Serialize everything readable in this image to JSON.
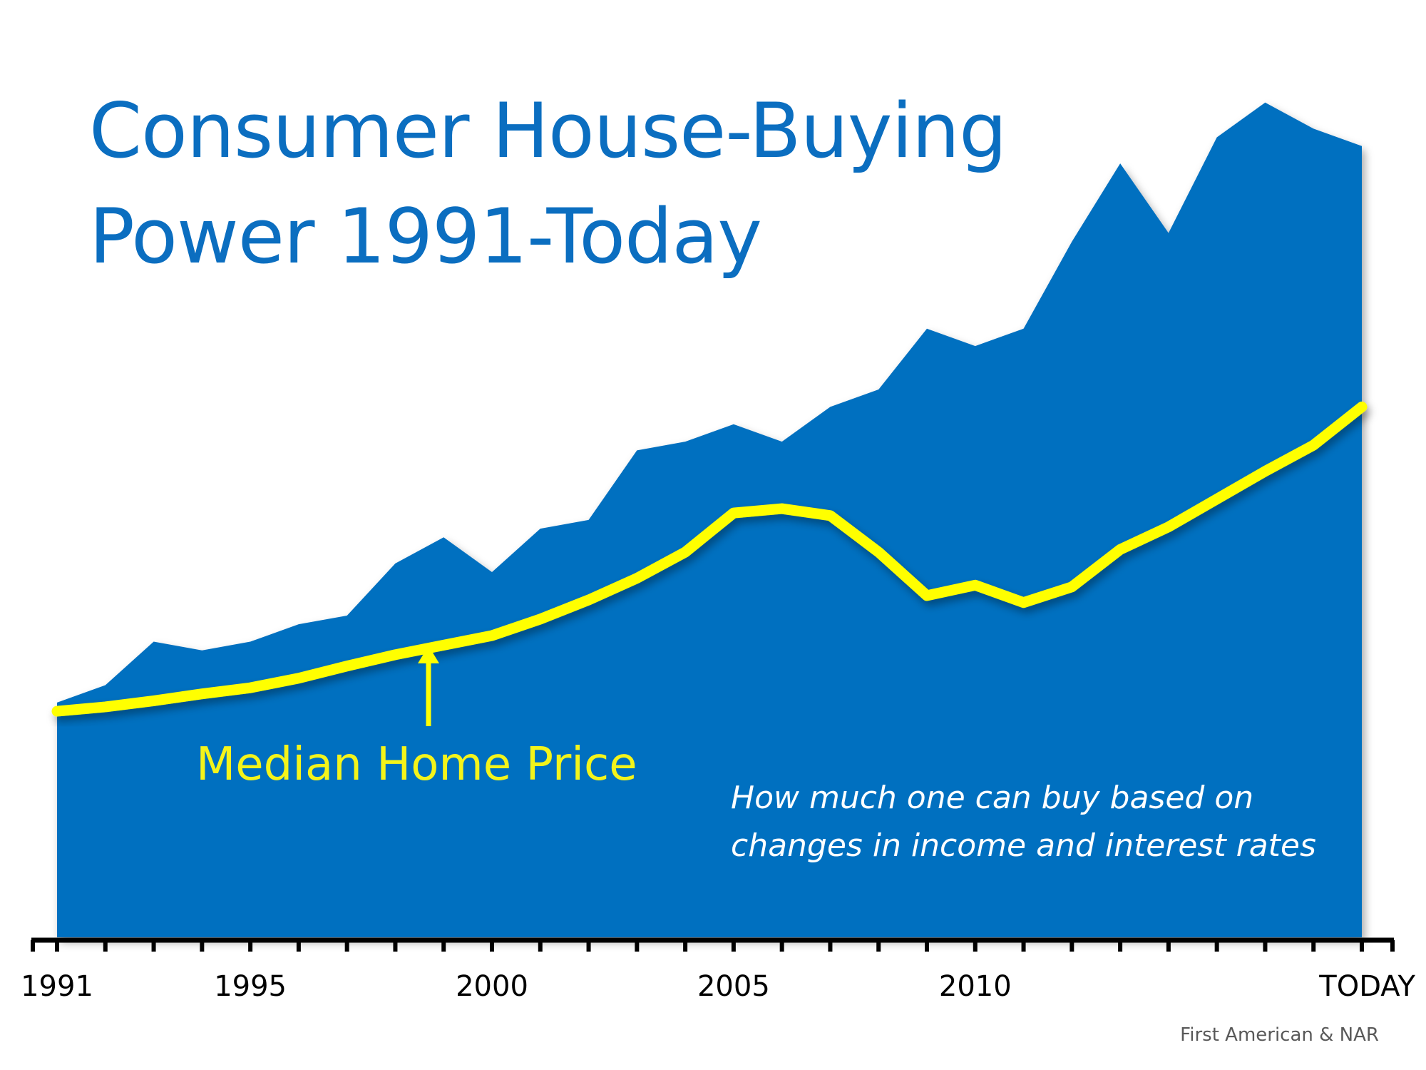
{
  "title_line1": "Consumer House-Buying",
  "title_line2": "Power 1991-Today",
  "series_label": "Median Home Price",
  "annotation_line1": "How much one can buy based on",
  "annotation_line2": "changes in income and interest rates",
  "source": "First American & NAR",
  "colors": {
    "area": "#0070c0",
    "line": "#ffff00",
    "title": "#0b6ec0",
    "axis": "#000000"
  },
  "chart_data": {
    "type": "area",
    "title": "Consumer House-Buying Power 1991-Today",
    "x": [
      1991,
      1992,
      1993,
      1994,
      1995,
      1996,
      1997,
      1998,
      1999,
      2000,
      2001,
      2002,
      2003,
      2004,
      2005,
      2006,
      2007,
      2008,
      2009,
      2010,
      2011,
      2012,
      2013,
      2014,
      2015,
      2016,
      2017,
      2018
    ],
    "x_tick_labels": [
      {
        "x": 1991,
        "label": "1991"
      },
      {
        "x": 1995,
        "label": "1995"
      },
      {
        "x": 2000,
        "label": "2000"
      },
      {
        "x": 2005,
        "label": "2005"
      },
      {
        "x": 2010,
        "label": "2010"
      },
      {
        "x": 2018,
        "label": "TODAY"
      }
    ],
    "xlim": [
      1991,
      2018
    ],
    "ylim": [
      0,
      100
    ],
    "y_axis_labels": false,
    "series": [
      {
        "name": "How much one can buy based on changes in income and interest rates",
        "type": "area",
        "values": [
          27,
          29,
          34,
          33,
          34,
          36,
          37,
          43,
          46,
          42,
          47,
          48,
          56,
          57,
          59,
          57,
          61,
          63,
          70,
          68,
          70,
          80,
          89,
          81,
          92,
          96,
          93,
          91
        ]
      },
      {
        "name": "Median Home Price",
        "type": "line",
        "values": [
          26,
          26.5,
          27.2,
          28,
          28.7,
          29.8,
          31.2,
          32.5,
          33.6,
          34.7,
          36.6,
          38.8,
          41.3,
          44.3,
          48.8,
          49.3,
          48.5,
          44.3,
          39.3,
          40.5,
          38.5,
          40.3,
          44.6,
          47.2,
          50.4,
          53.6,
          56.6,
          61
        ]
      }
    ]
  }
}
